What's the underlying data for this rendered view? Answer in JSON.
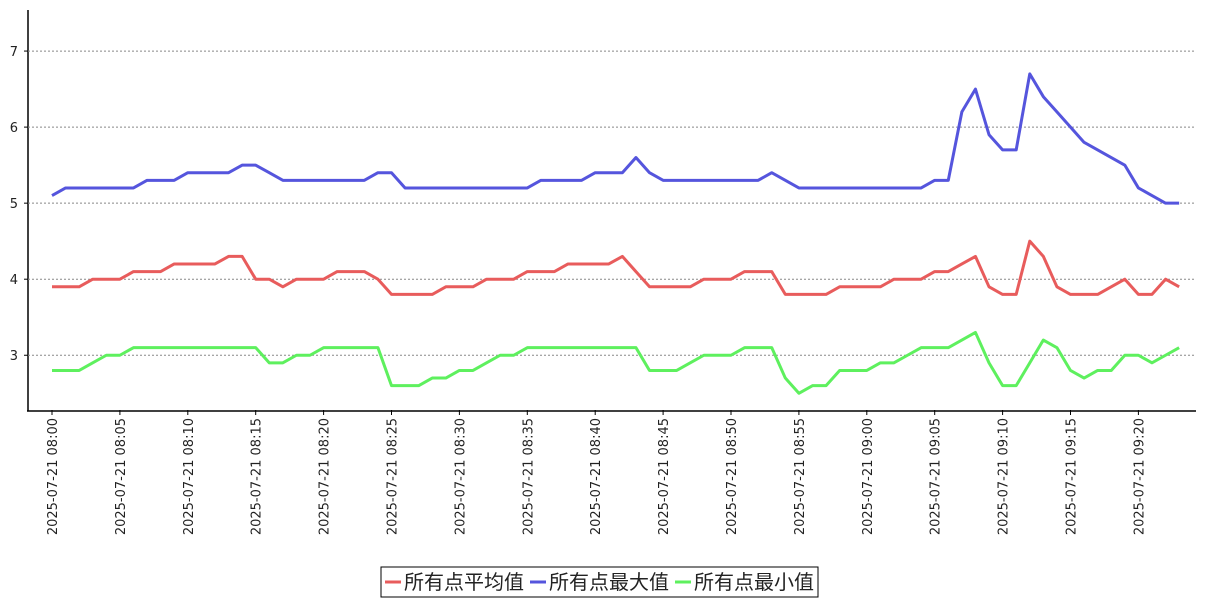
{
  "chart_data": {
    "type": "line",
    "categories": [
      "2025-07-21 08:00",
      null,
      null,
      null,
      null,
      "2025-07-21 08:05",
      null,
      null,
      null,
      null,
      "2025-07-21 08:10",
      null,
      null,
      null,
      null,
      "2025-07-21 08:15",
      null,
      null,
      null,
      null,
      "2025-07-21 08:20",
      null,
      null,
      null,
      null,
      "2025-07-21 08:25",
      null,
      null,
      null,
      null,
      "2025-07-21 08:30",
      null,
      null,
      null,
      null,
      "2025-07-21 08:35",
      null,
      null,
      null,
      null,
      "2025-07-21 08:40",
      null,
      null,
      null,
      null,
      "2025-07-21 08:45",
      null,
      null,
      null,
      null,
      "2025-07-21 08:50",
      null,
      null,
      null,
      null,
      "2025-07-21 08:55",
      null,
      null,
      null,
      null,
      "2025-07-21 09:00",
      null,
      null,
      null,
      null,
      "2025-07-21 09:05",
      null,
      null,
      null,
      null,
      "2025-07-21 09:10",
      null,
      null,
      null,
      null,
      "2025-07-21 09:15",
      null,
      null,
      null,
      null,
      "2025-07-21 09:20",
      null,
      null,
      null
    ],
    "series": [
      {
        "name": "所有点平均值",
        "color": "#e85c5c",
        "values": [
          3.9,
          3.9,
          3.9,
          4.0,
          4.0,
          4.0,
          4.1,
          4.1,
          4.1,
          4.2,
          4.2,
          4.2,
          4.2,
          4.3,
          4.3,
          4.0,
          4.0,
          3.9,
          4.0,
          4.0,
          4.0,
          4.1,
          4.1,
          4.1,
          4.0,
          3.8,
          3.8,
          3.8,
          3.8,
          3.9,
          3.9,
          3.9,
          4.0,
          4.0,
          4.0,
          4.1,
          4.1,
          4.1,
          4.2,
          4.2,
          4.2,
          4.2,
          4.3,
          4.1,
          3.9,
          3.9,
          3.9,
          3.9,
          4.0,
          4.0,
          4.0,
          4.1,
          4.1,
          4.1,
          3.8,
          3.8,
          3.8,
          3.8,
          3.9,
          3.9,
          3.9,
          3.9,
          4.0,
          4.0,
          4.0,
          4.1,
          4.1,
          4.2,
          4.3,
          3.9,
          3.8,
          3.8,
          4.5,
          4.3,
          3.9,
          3.8,
          3.8,
          3.8,
          3.9,
          4.0,
          3.8,
          3.8,
          4.0,
          3.9
        ]
      },
      {
        "name": "所有点最大值",
        "color": "#5555dd",
        "values": [
          5.1,
          5.2,
          5.2,
          5.2,
          5.2,
          5.2,
          5.2,
          5.3,
          5.3,
          5.3,
          5.4,
          5.4,
          5.4,
          5.4,
          5.5,
          5.5,
          5.4,
          5.3,
          5.3,
          5.3,
          5.3,
          5.3,
          5.3,
          5.3,
          5.4,
          5.4,
          5.2,
          5.2,
          5.2,
          5.2,
          5.2,
          5.2,
          5.2,
          5.2,
          5.2,
          5.2,
          5.3,
          5.3,
          5.3,
          5.3,
          5.4,
          5.4,
          5.4,
          5.6,
          5.4,
          5.3,
          5.3,
          5.3,
          5.3,
          5.3,
          5.3,
          5.3,
          5.3,
          5.4,
          5.3,
          5.2,
          5.2,
          5.2,
          5.2,
          5.2,
          5.2,
          5.2,
          5.2,
          5.2,
          5.2,
          5.3,
          5.3,
          6.2,
          6.5,
          5.9,
          5.7,
          5.7,
          6.7,
          6.4,
          6.2,
          6.0,
          5.8,
          5.7,
          5.6,
          5.5,
          5.2,
          5.1,
          5.0,
          5.0
        ]
      },
      {
        "name": "所有点最小值",
        "color": "#5ef05e",
        "values": [
          2.8,
          2.8,
          2.8,
          2.9,
          3.0,
          3.0,
          3.1,
          3.1,
          3.1,
          3.1,
          3.1,
          3.1,
          3.1,
          3.1,
          3.1,
          3.1,
          2.9,
          2.9,
          3.0,
          3.0,
          3.1,
          3.1,
          3.1,
          3.1,
          3.1,
          2.6,
          2.6,
          2.6,
          2.7,
          2.7,
          2.8,
          2.8,
          2.9,
          3.0,
          3.0,
          3.1,
          3.1,
          3.1,
          3.1,
          3.1,
          3.1,
          3.1,
          3.1,
          3.1,
          2.8,
          2.8,
          2.8,
          2.9,
          3.0,
          3.0,
          3.0,
          3.1,
          3.1,
          3.1,
          2.7,
          2.5,
          2.6,
          2.6,
          2.8,
          2.8,
          2.8,
          2.9,
          2.9,
          3.0,
          3.1,
          3.1,
          3.1,
          3.2,
          3.3,
          2.9,
          2.6,
          2.6,
          2.9,
          3.2,
          3.1,
          2.8,
          2.7,
          2.8,
          2.8,
          3.0,
          3.0,
          2.9,
          3.0,
          3.1
        ]
      }
    ],
    "ylim": [
      2.28,
      7.54
    ],
    "yticks": [
      3,
      4,
      5,
      6,
      7
    ],
    "grid": true,
    "legend": "bottom"
  }
}
